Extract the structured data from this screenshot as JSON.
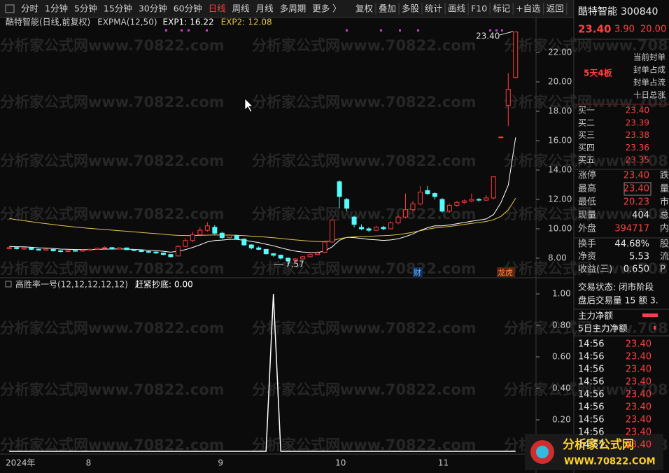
{
  "toolbar": {
    "left": [
      "分时",
      "1分钟",
      "5分钟",
      "15分钟",
      "30分钟",
      "60分钟",
      "日线",
      "周线",
      "月线",
      "多周期",
      "更多 〉"
    ],
    "active": 6,
    "right": [
      "复权",
      "叠加",
      "多股",
      "统计",
      "画线",
      "F10",
      "标记",
      "+自选",
      "返回"
    ]
  },
  "watermark": "分析家公式网www.70822.com",
  "logo": {
    "name": "分析家公式网",
    "url": "WWW.70822.COM"
  },
  "chart_data": [
    {
      "type": "candlestick",
      "title": "酷特智能(日线,前复权)",
      "indicator": "EXPMA(12,50)",
      "categories": [
        "2024年",
        null,
        null,
        null,
        null,
        null,
        null,
        null,
        null,
        null,
        null,
        "8",
        null,
        null,
        null,
        null,
        null,
        null,
        null,
        null,
        null,
        null,
        null,
        null,
        null,
        null,
        null,
        null,
        null,
        "9",
        null,
        null,
        null,
        null,
        null,
        null,
        null,
        null,
        null,
        null,
        null,
        null,
        null,
        null,
        null,
        "10",
        null,
        null,
        null,
        null,
        null,
        null,
        null,
        null,
        null,
        null,
        null,
        null,
        null,
        "11",
        null,
        null,
        null,
        null,
        null,
        null,
        null,
        null,
        null,
        null
      ],
      "ohlc": [
        [
          8.65,
          8.78,
          8.6,
          8.72
        ],
        [
          8.72,
          8.75,
          8.6,
          8.65
        ],
        [
          8.62,
          8.74,
          8.58,
          8.7
        ],
        [
          8.7,
          8.72,
          8.55,
          8.6
        ],
        [
          8.6,
          8.65,
          8.5,
          8.55
        ],
        [
          8.55,
          8.66,
          8.52,
          8.62
        ],
        [
          8.6,
          8.62,
          8.46,
          8.5
        ],
        [
          8.5,
          8.55,
          8.4,
          8.45
        ],
        [
          8.45,
          8.56,
          8.42,
          8.52
        ],
        [
          8.52,
          8.55,
          8.44,
          8.48
        ],
        [
          8.48,
          8.6,
          8.45,
          8.55
        ],
        [
          8.55,
          8.66,
          8.52,
          8.6
        ],
        [
          8.6,
          8.72,
          8.58,
          8.68
        ],
        [
          8.66,
          8.8,
          8.64,
          8.72
        ],
        [
          8.72,
          8.75,
          8.58,
          8.62
        ],
        [
          8.62,
          8.74,
          8.6,
          8.7
        ],
        [
          8.7,
          8.72,
          8.55,
          8.58
        ],
        [
          8.58,
          8.62,
          8.48,
          8.52
        ],
        [
          8.52,
          8.55,
          8.4,
          8.45
        ],
        [
          8.45,
          8.5,
          8.36,
          8.4
        ],
        [
          8.42,
          8.46,
          8.3,
          8.35
        ],
        [
          8.35,
          8.38,
          8.2,
          8.25
        ],
        [
          8.25,
          8.28,
          8.05,
          8.1
        ],
        [
          8.15,
          8.9,
          8.12,
          8.8
        ],
        [
          8.8,
          9.35,
          8.75,
          9.2
        ],
        [
          9.2,
          9.8,
          9.1,
          9.6
        ],
        [
          9.6,
          10.1,
          9.5,
          9.9
        ],
        [
          9.9,
          10.45,
          9.8,
          10.2
        ],
        [
          10.1,
          10.25,
          9.6,
          9.7
        ],
        [
          9.7,
          9.8,
          9.3,
          9.4
        ],
        [
          9.4,
          9.65,
          9.35,
          9.55
        ],
        [
          9.55,
          9.6,
          9.25,
          9.3
        ],
        [
          9.3,
          9.35,
          8.85,
          8.9
        ],
        [
          8.9,
          8.95,
          8.6,
          8.7
        ],
        [
          8.7,
          8.8,
          8.55,
          8.6
        ],
        [
          8.6,
          8.62,
          8.25,
          8.3
        ],
        [
          8.3,
          8.35,
          8.1,
          8.2
        ],
        [
          8.2,
          8.25,
          7.9,
          8.0
        ],
        [
          8.0,
          8.05,
          7.57,
          7.85
        ],
        [
          7.85,
          8.0,
          7.8,
          7.95
        ],
        [
          7.95,
          8.15,
          7.9,
          8.1
        ],
        [
          8.1,
          8.3,
          8.05,
          8.25
        ],
        [
          8.25,
          8.45,
          8.2,
          8.35
        ],
        [
          8.4,
          9.2,
          8.35,
          9.1
        ],
        [
          9.1,
          10.7,
          9.05,
          10.6
        ],
        [
          13.2,
          13.3,
          11.4,
          12.2
        ],
        [
          12.0,
          12.1,
          11.2,
          11.4
        ],
        [
          10.8,
          10.9,
          10.1,
          10.3
        ],
        [
          10.1,
          10.3,
          9.9,
          10.0
        ],
        [
          10.0,
          10.1,
          9.8,
          9.9
        ],
        [
          9.9,
          10.2,
          9.85,
          10.1
        ],
        [
          10.1,
          10.2,
          9.9,
          10.0
        ],
        [
          10.0,
          10.5,
          9.95,
          10.4
        ],
        [
          10.4,
          10.9,
          10.3,
          10.8
        ],
        [
          10.8,
          12.4,
          10.7,
          11.3
        ],
        [
          11.3,
          11.9,
          11.2,
          11.7
        ],
        [
          11.7,
          12.9,
          11.6,
          12.5
        ],
        [
          12.6,
          12.9,
          12.3,
          12.4
        ],
        [
          12.4,
          12.5,
          12.0,
          12.2
        ],
        [
          12.0,
          12.1,
          11.1,
          11.2
        ],
        [
          11.2,
          11.7,
          11.1,
          11.6
        ],
        [
          11.6,
          11.9,
          11.5,
          11.8
        ],
        [
          11.8,
          12.0,
          11.7,
          11.9
        ],
        [
          11.9,
          12.4,
          11.8,
          12.0
        ],
        [
          12.0,
          12.1,
          11.85,
          11.95
        ],
        [
          11.95,
          12.3,
          11.9,
          12.1
        ],
        [
          12.1,
          13.54,
          12.0,
          13.54
        ],
        [
          16.25,
          16.25,
          16.25,
          16.25
        ],
        [
          18.4,
          20.6,
          17.0,
          19.5
        ],
        [
          20.3,
          23.4,
          20.23,
          23.4
        ]
      ],
      "series": [
        {
          "name": "EXP1:",
          "color": "#ffffff",
          "values": [
            8.8,
            8.78,
            8.77,
            8.74,
            8.7,
            8.69,
            8.66,
            8.62,
            8.61,
            8.59,
            8.58,
            8.58,
            8.6,
            8.62,
            8.62,
            8.63,
            8.62,
            8.6,
            8.57,
            8.54,
            8.51,
            8.47,
            8.41,
            8.47,
            8.58,
            8.73,
            8.91,
            9.11,
            9.2,
            9.23,
            9.28,
            9.28,
            9.22,
            9.14,
            9.06,
            8.95,
            8.84,
            8.71,
            8.58,
            8.48,
            8.42,
            8.39,
            8.38,
            8.49,
            8.77,
            9.22,
            9.42,
            9.4,
            9.34,
            9.28,
            9.25,
            9.21,
            9.24,
            9.32,
            9.47,
            9.65,
            9.89,
            10.07,
            10.2,
            10.2,
            10.26,
            10.34,
            10.43,
            10.52,
            10.59,
            10.67,
            10.97,
            11.78,
            12.96,
            16.22
          ]
        },
        {
          "name": "EXP2:",
          "color": "#e6c34a",
          "values": [
            10.7,
            10.62,
            10.55,
            10.48,
            10.41,
            10.35,
            10.29,
            10.23,
            10.17,
            10.12,
            10.07,
            10.03,
            9.99,
            9.95,
            9.91,
            9.87,
            9.83,
            9.79,
            9.75,
            9.71,
            9.67,
            9.63,
            9.58,
            9.55,
            9.54,
            9.54,
            9.55,
            9.57,
            9.58,
            9.57,
            9.57,
            9.56,
            9.53,
            9.5,
            9.47,
            9.43,
            9.39,
            9.34,
            9.29,
            9.24,
            9.2,
            9.16,
            9.13,
            9.13,
            9.18,
            9.33,
            9.41,
            9.45,
            9.47,
            9.49,
            9.51,
            9.53,
            9.56,
            9.61,
            9.68,
            9.76,
            9.87,
            9.97,
            10.06,
            10.1,
            10.16,
            10.23,
            10.3,
            10.37,
            10.43,
            10.5,
            10.62,
            10.84,
            11.27,
            12.08
          ]
        }
      ],
      "up_color": "#ff3b3b",
      "down_color": "#54fcfc",
      "high_label": "23.40",
      "low_label": "7.57",
      "tags": [
        "财",
        "龙虎"
      ],
      "ylim": [
        6.76,
        23.67
      ],
      "yticks": [
        {
          "value": 8,
          "label": "8.00"
        },
        {
          "value": 10,
          "label": "10.00"
        },
        {
          "value": 12,
          "label": "12.00"
        },
        {
          "value": 14,
          "label": "14.00"
        },
        {
          "value": 16,
          "label": "16.00"
        },
        {
          "value": 18,
          "label": "18.00"
        },
        {
          "value": 20,
          "label": "20.00"
        },
        {
          "value": 22,
          "label": "22.00"
        }
      ],
      "grid": false
    },
    {
      "type": "line",
      "title": "高胜率一号(12,12,12,12,12)",
      "series": [
        {
          "name": "赶紧抄底:",
          "color": "#ffffff",
          "values": [
            0,
            0,
            0,
            0,
            0,
            0,
            0,
            0,
            0,
            0,
            0,
            0,
            0,
            0,
            0,
            0,
            0,
            0,
            0,
            0,
            0,
            0,
            0,
            0,
            0,
            0,
            0,
            0,
            0,
            0,
            0,
            0,
            0,
            0,
            0,
            0,
            1,
            0,
            0,
            0,
            0,
            0,
            0,
            0,
            0,
            0,
            0,
            0,
            0,
            0,
            0,
            0,
            0,
            0,
            0,
            0,
            0,
            0,
            0,
            0,
            0,
            0,
            0,
            0,
            0,
            0,
            0,
            0,
            0,
            0
          ]
        }
      ],
      "readout": "0.00",
      "ylim": [
        0,
        1.089
      ],
      "yticks": [
        {
          "value": 0.2,
          "label": "0.20"
        },
        {
          "value": 0.4,
          "label": "0.40"
        },
        {
          "value": 0.6,
          "label": "0.60"
        },
        {
          "value": 0.8,
          "label": "0.80"
        },
        {
          "value": 1,
          "label": "1.00"
        }
      ],
      "grid": false
    }
  ],
  "quote": {
    "name": "酷特智能",
    "code": "300840",
    "price": "23.40",
    "change": "3.90",
    "pct": "20.00",
    "notes": [
      "当前封单",
      "封单占成",
      "封单占流",
      "十日总涨"
    ],
    "streak": "5天4板",
    "bids": [
      [
        "买一",
        "23.40"
      ],
      [
        "买二",
        "23.39"
      ],
      [
        "买三",
        "23.38"
      ],
      [
        "买四",
        "23.36"
      ],
      [
        "买五",
        "23.35"
      ]
    ],
    "stats": [
      [
        "涨停",
        "23.40",
        "跌"
      ],
      [
        "最高",
        "23.40",
        "量"
      ],
      [
        "最低",
        "20.23",
        "市"
      ],
      [
        "现量",
        "404",
        "总"
      ],
      [
        "外盘",
        "394717",
        "内"
      ]
    ],
    "stats2": [
      [
        "换手",
        "44.68%",
        "股"
      ],
      [
        "净资",
        "5.53",
        "流"
      ],
      [
        "收益(三)",
        "0.650",
        "P"
      ]
    ],
    "status": [
      "交易状态: 闭市阶段",
      "盘后交易量 15 额 3."
    ],
    "flows": [
      "主力净额",
      "5日主力净额"
    ],
    "ticks": [
      [
        "14:56",
        "23.40"
      ],
      [
        "14:56",
        "23.40"
      ],
      [
        "14:56",
        "23.40"
      ],
      [
        "14:56",
        "23.40"
      ],
      [
        "14:56",
        "23.40"
      ],
      [
        "14:56",
        "23.40"
      ],
      [
        "14:56",
        "23.40"
      ],
      [
        "14:56",
        "23.40"
      ],
      [
        "14:57",
        "23.40"
      ]
    ]
  }
}
